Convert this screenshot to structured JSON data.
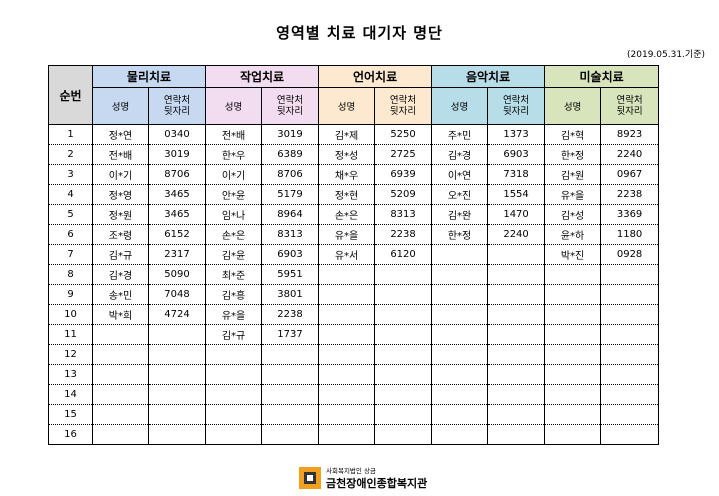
{
  "title": "영역별 치료 대기자 명단",
  "date": "(2019.05.31.기준)",
  "header": {
    "no_label": "순번",
    "name_label": "성명",
    "contact_label_line1": "연락처",
    "contact_label_line2": "뒷자리"
  },
  "categories": [
    {
      "label": "물리치료",
      "color": "#c6d9f1"
    },
    {
      "label": "작업치료",
      "color": "#f2dcef"
    },
    {
      "label": "언어치료",
      "color": "#fde9d0"
    },
    {
      "label": "음악치료",
      "color": "#b7dde8"
    },
    {
      "label": "미술치료",
      "color": "#d8e4bc"
    }
  ],
  "rows": [
    {
      "no": "1",
      "cells": [
        [
          "정*연",
          "0340"
        ],
        [
          "전*배",
          "3019"
        ],
        [
          "김*제",
          "5250"
        ],
        [
          "주*민",
          "1373"
        ],
        [
          "김*혁",
          "8923"
        ]
      ]
    },
    {
      "no": "2",
      "cells": [
        [
          "전*배",
          "3019"
        ],
        [
          "한*우",
          "6389"
        ],
        [
          "정*성",
          "2725"
        ],
        [
          "김*경",
          "6903"
        ],
        [
          "한*정",
          "2240"
        ]
      ]
    },
    {
      "no": "3",
      "cells": [
        [
          "이*기",
          "8706"
        ],
        [
          "이*기",
          "8706"
        ],
        [
          "채*우",
          "6939"
        ],
        [
          "이*연",
          "7318"
        ],
        [
          "김*원",
          "0967"
        ]
      ]
    },
    {
      "no": "4",
      "cells": [
        [
          "정*영",
          "3465"
        ],
        [
          "안*윤",
          "5179"
        ],
        [
          "정*현",
          "5209"
        ],
        [
          "오*진",
          "1554"
        ],
        [
          "유*을",
          "2238"
        ]
      ]
    },
    {
      "no": "5",
      "cells": [
        [
          "정*원",
          "3465"
        ],
        [
          "임*나",
          "8964"
        ],
        [
          "손*은",
          "8313"
        ],
        [
          "김*완",
          "1470"
        ],
        [
          "김*성",
          "3369"
        ]
      ]
    },
    {
      "no": "6",
      "cells": [
        [
          "조*령",
          "6152"
        ],
        [
          "손*은",
          "8313"
        ],
        [
          "유*을",
          "2238"
        ],
        [
          "한*정",
          "2240"
        ],
        [
          "윤*하",
          "1180"
        ]
      ]
    },
    {
      "no": "7",
      "cells": [
        [
          "김*규",
          "2317"
        ],
        [
          "김*윤",
          "6903"
        ],
        [
          "유*서",
          "6120"
        ],
        [
          "",
          ""
        ],
        [
          "박*진",
          "0928"
        ]
      ]
    },
    {
      "no": "8",
      "cells": [
        [
          "김*경",
          "5090"
        ],
        [
          "최*준",
          "5951"
        ],
        [
          "",
          ""
        ],
        [
          "",
          ""
        ],
        [
          "",
          ""
        ]
      ]
    },
    {
      "no": "9",
      "cells": [
        [
          "송*민",
          "7048"
        ],
        [
          "김*흥",
          "3801"
        ],
        [
          "",
          ""
        ],
        [
          "",
          ""
        ],
        [
          "",
          ""
        ]
      ]
    },
    {
      "no": "10",
      "cells": [
        [
          "박*희",
          "4724"
        ],
        [
          "유*을",
          "2238"
        ],
        [
          "",
          ""
        ],
        [
          "",
          ""
        ],
        [
          "",
          ""
        ]
      ]
    },
    {
      "no": "11",
      "cells": [
        [
          "",
          ""
        ],
        [
          "김*규",
          "1737"
        ],
        [
          "",
          ""
        ],
        [
          "",
          ""
        ],
        [
          "",
          ""
        ]
      ]
    },
    {
      "no": "12",
      "cells": [
        [
          "",
          ""
        ],
        [
          "",
          ""
        ],
        [
          "",
          ""
        ],
        [
          "",
          ""
        ],
        [
          "",
          ""
        ]
      ]
    },
    {
      "no": "13",
      "cells": [
        [
          "",
          ""
        ],
        [
          "",
          ""
        ],
        [
          "",
          ""
        ],
        [
          "",
          ""
        ],
        [
          "",
          ""
        ]
      ]
    },
    {
      "no": "14",
      "cells": [
        [
          "",
          ""
        ],
        [
          "",
          ""
        ],
        [
          "",
          ""
        ],
        [
          "",
          ""
        ],
        [
          "",
          ""
        ]
      ]
    },
    {
      "no": "15",
      "cells": [
        [
          "",
          ""
        ],
        [
          "",
          ""
        ],
        [
          "",
          ""
        ],
        [
          "",
          ""
        ],
        [
          "",
          ""
        ]
      ]
    },
    {
      "no": "16",
      "cells": [
        [
          "",
          ""
        ],
        [
          "",
          ""
        ],
        [
          "",
          ""
        ],
        [
          "",
          ""
        ],
        [
          "",
          ""
        ]
      ]
    }
  ],
  "footer": {
    "org_sub": "사회복지법인 상금",
    "org_name": "금천장애인종합복지관",
    "logo_color_outer": "#f0a01e",
    "logo_color_inner": "#333333"
  }
}
